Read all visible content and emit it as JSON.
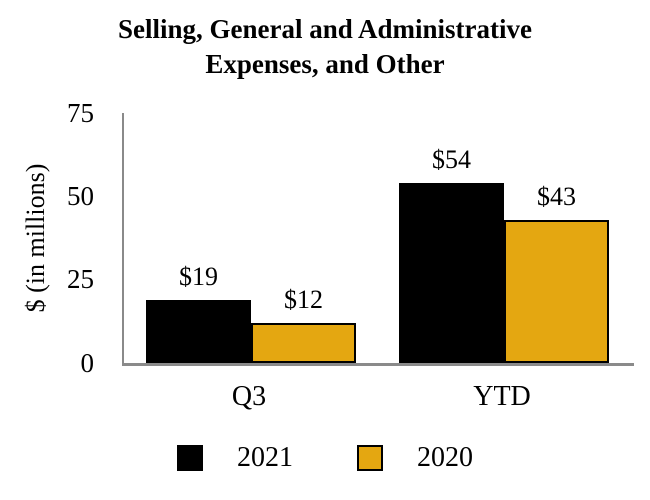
{
  "title": "Selling, General and Administrative\nExpenses, and Other",
  "chart_data": {
    "type": "bar",
    "title": "Selling, General and Administrative Expenses, and Other",
    "categories": [
      "Q3",
      "YTD"
    ],
    "series": [
      {
        "name": "2021",
        "color": "#000000",
        "values": [
          19,
          54
        ],
        "value_labels": [
          "$19",
          "$54"
        ]
      },
      {
        "name": "2020",
        "color": "#e4a711",
        "values": [
          12,
          43
        ],
        "value_labels": [
          "$12",
          "$43"
        ]
      }
    ],
    "xlabel": "",
    "ylabel": "$ (in millions)",
    "ylim": [
      0,
      75
    ],
    "yticks": [
      "0",
      "25",
      "50",
      "75"
    ],
    "grid": false,
    "legend_position": "bottom",
    "bar_labels": true
  },
  "colors": {
    "series_2021": "#000000",
    "series_2020": "#e4a711",
    "axis_line": "#8a8a8a",
    "text": "#000000",
    "background": "#ffffff"
  }
}
